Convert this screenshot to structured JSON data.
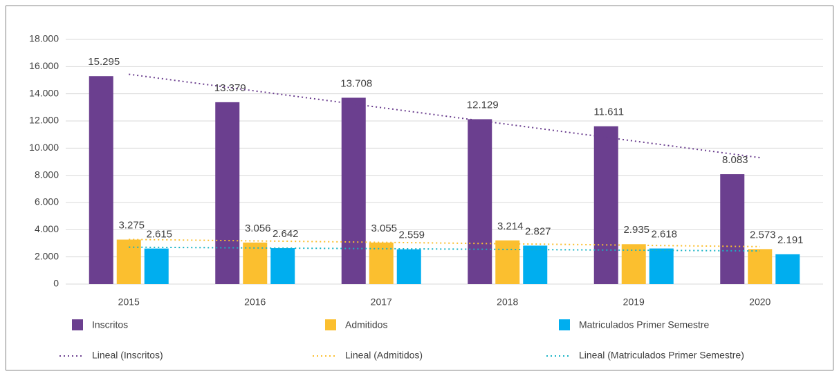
{
  "chart_data": {
    "type": "bar",
    "categories": [
      "2015",
      "2016",
      "2017",
      "2018",
      "2019",
      "2020"
    ],
    "series": [
      {
        "name": "Inscritos",
        "color": "#6b3f8f",
        "values": [
          15295,
          13379,
          13708,
          12129,
          11611,
          8083
        ],
        "value_labels": [
          "15.295",
          "13.379",
          "13.708",
          "12.129",
          "11.611",
          "8.083"
        ],
        "trendline": {
          "name": "Lineal (Inscritos)",
          "color": "#6b3f8f"
        }
      },
      {
        "name": "Admitidos",
        "color": "#fbbf2f",
        "values": [
          3275,
          3056,
          3055,
          3214,
          2935,
          2573
        ],
        "value_labels": [
          "3.275",
          "3.056",
          "3.055",
          "3.214",
          "2.935",
          "2.573"
        ],
        "trendline": {
          "name": "Lineal (Admitidos)",
          "color": "#fbbf2f"
        }
      },
      {
        "name": "Matriculados Primer Semestre",
        "color": "#00aeef",
        "values": [
          2615,
          2642,
          2559,
          2827,
          2618,
          2191
        ],
        "value_labels": [
          "2.615",
          "2.642",
          "2.559",
          "2.827",
          "2.618",
          "2.191"
        ],
        "trendline": {
          "name": "Lineal (Matriculados Primer Semestre)",
          "color": "#17b3c5"
        }
      }
    ],
    "ylim": [
      0,
      18000
    ],
    "yticks": [
      0,
      {
        "value": 2000,
        "label": "2.000"
      },
      {
        "value": 4000,
        "label": "4.000"
      },
      {
        "value": 6000,
        "label": "6.000"
      },
      {
        "value": 8000,
        "label": "8.000"
      },
      {
        "value": 10000,
        "label": "10.000"
      },
      {
        "value": 12000,
        "label": "12.000"
      },
      {
        "value": 14000,
        "label": "14.000"
      },
      {
        "value": 16000,
        "label": "16.000"
      },
      {
        "value": 18000,
        "label": "18.000"
      }
    ],
    "grid": true,
    "legend": "bottom"
  }
}
